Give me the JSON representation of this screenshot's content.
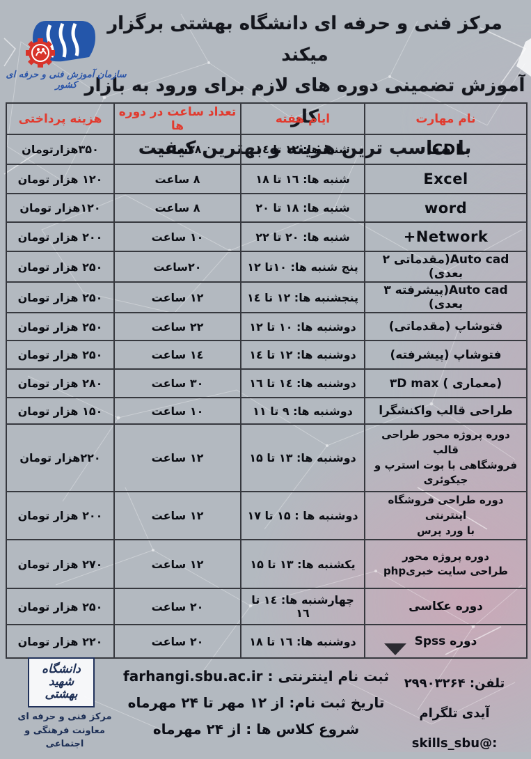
{
  "title": {
    "line1": "مرکز فنی و حرفه ای دانشگاه بهشتی برگزار میکند",
    "line2": "آموزش تضمینی دوره های لازم برای ورود به بازار کار",
    "line3": "با مناسب ترین هزینه و بهترین کیفیت"
  },
  "tvto_logo_caption": "سازمان آموزش فنی و حرفه ای کشور",
  "table": {
    "headers": {
      "skill": "نام مهارت",
      "days": "ایام هفته",
      "hours": "تعداد ساعت در دوره ها",
      "cost": "هزینه پرداختی"
    },
    "rows": [
      {
        "skill": "ICDL",
        "days": "شنبه ها: ۱۲ تا ۱٤",
        "hours": "۳۸ساعت",
        "cost": "۳۵۰هزارتومان"
      },
      {
        "skill": "Excel",
        "days": "شنبه ها: ۱٦ تا ۱۸",
        "hours": "۸ ساعت",
        "cost": "۱۲۰ هزار تومان"
      },
      {
        "skill": "word",
        "days": "شنبه ها: ۱۸ تا ۲۰",
        "hours": "۸ ساعت",
        "cost": "۱۲۰هزار تومان"
      },
      {
        "skill": "Network+",
        "days": "شنبه ها: ۲۰ تا ۲۲",
        "hours": "۱۰ ساعت",
        "cost": "۲۰۰ هزار تومان"
      },
      {
        "skill": "Auto cad(مقدماتی ۲ بعدی)",
        "days": "پنج شنبه ها: ۱۰تا ۱۲",
        "hours": "۲۰ساعت",
        "cost": "۲۵۰ هزار تومان"
      },
      {
        "skill": "Auto cad(پیشرفته ۳ بعدی)",
        "days": "پنجشنبه ها: ۱۲ تا ۱٤",
        "hours": "۱۲ ساعت",
        "cost": "۲۵۰ هزار تومان"
      },
      {
        "skill": "فتوشاپ (مقدماتی)",
        "days": "دوشنبه ها: ۱۰ تا ۱۲",
        "hours": "۲۲ ساعت",
        "cost": "۲۵۰ هزار تومان"
      },
      {
        "skill": "فتوشاپ (پیشرفته)",
        "days": "دوشنبه ها: ۱۲ تا ۱٤",
        "hours": "۱٤ ساعت",
        "cost": "۲۵۰ هزار تومان"
      },
      {
        "skill": "۳D max ( معماری)",
        "skill_dir": "ltr",
        "days": "دوشنبه ها: ۱٤ تا ۱٦",
        "hours": "۳۰ ساعت",
        "cost": "۲۸۰ هزار تومان"
      },
      {
        "skill": "طراحی قالب واکنشگرا",
        "days": "دوشنبه ها: ۹ تا ۱۱",
        "hours": "۱۰ ساعت",
        "cost": "۱۵۰ هزار تومان"
      },
      {
        "skill": "دوره پروژه محور طراحی قالب\nفروشگاهی با بوت استرپ و\nجیکوئری",
        "days": "دوشنبه ها: ۱۳ تا ۱۵",
        "hours": "۱۲ ساعت",
        "cost": "۲۲۰هزار تومان"
      },
      {
        "skill": "دوره طراحی فروشگاه اینترنتی\nبا ورد پرس",
        "days": "دوشنبه ها : ۱۵ تا ۱۷",
        "hours": "۱۲ ساعت",
        "cost": "۲۰۰ هزار تومان"
      },
      {
        "skill": "دوره پروژه محور\nphpطراحی سایت خبری",
        "skill_dir": "ltr",
        "days": "یکشنبه ها: ۱۳ تا ۱۵",
        "hours": "۱۲ ساعت",
        "cost": "۲۷۰ هزار تومان"
      },
      {
        "skill": "دوره عکاسی",
        "days": "چهارشنبه ها: ۱٤ تا\n۱٦",
        "hours": "۲۰ ساعت",
        "cost": "۲۵۰ هزار تومان"
      },
      {
        "skill": "دوره Spss",
        "days": "دوشنبه ها: ۱٦ تا ۱۸",
        "hours": "۲۰ ساعت",
        "cost": "۲۲۰ هزار تومان"
      }
    ]
  },
  "footer": {
    "register_line": "ثبت نام اینترنتی : farhangi.sbu.ac.ir",
    "dates_line": "تاریخ ثبت نام: از ۱۲ مهر تا ۲۴ مهرماه",
    "start_line": "شروع کلاس ها : از ۲۴ مهرماه",
    "phone_line": "تلفن: ۲۹۹۰۳۲۶۴",
    "telegram_line": "آیدی تلگرام :@skills_sbu",
    "uni_logo_text": "دانشگاه\nشهید\nبهشتی",
    "org_lines": "مرکز فنی و حرفه ای\nمعاونت فرهنگی و اجتماعی"
  },
  "colors": {
    "background": "#b3b9c0",
    "pink_tint": "#d69eb2",
    "table_border": "#36383e",
    "header_red": "#e13b2f",
    "text_black": "#0b0d13",
    "navy": "#1d2f55",
    "logo_blue": "#2456aa",
    "logo_red": "#d8332a"
  }
}
